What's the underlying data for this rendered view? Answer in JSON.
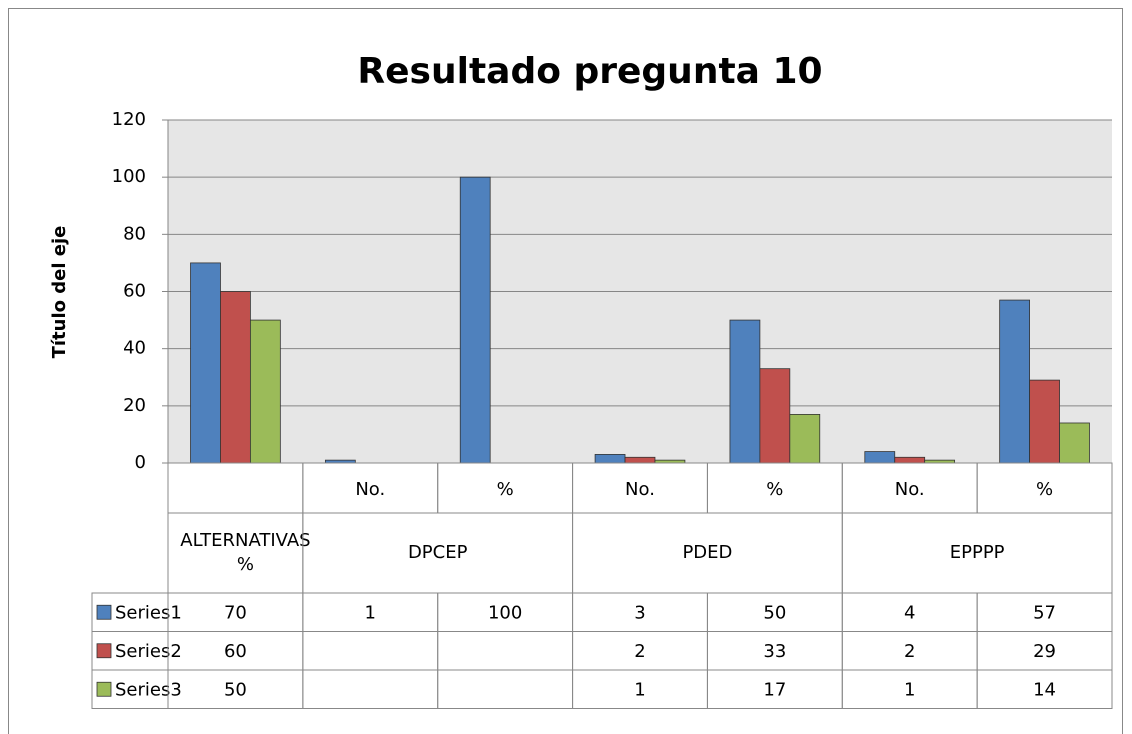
{
  "chart_data": {
    "type": "bar",
    "title": "Resultado pregunta 10",
    "y_label": "Título del eje",
    "categories": [
      null,
      "No.",
      "%",
      "No.",
      "%",
      "No.",
      "%"
    ],
    "groups": [
      {
        "name": "ALTERNATIVAS %",
        "size": 1
      },
      {
        "name": "DPCEP",
        "size": 2
      },
      {
        "name": "PDED",
        "size": 2
      },
      {
        "name": "EPPPP",
        "size": 2
      }
    ],
    "series": [
      {
        "name": "Series1",
        "color": "#4f81bd",
        "values": [
          70,
          1,
          100,
          3,
          50,
          4,
          57
        ]
      },
      {
        "name": "Series2",
        "color": "#c0504d",
        "values": [
          60,
          null,
          null,
          2,
          33,
          2,
          29
        ]
      },
      {
        "name": "Series3",
        "color": "#9bbb59",
        "values": [
          50,
          null,
          null,
          1,
          17,
          1,
          14
        ]
      }
    ],
    "ylim": [
      0,
      120
    ],
    "yticks": [
      0,
      20,
      40,
      60,
      80,
      100,
      120
    ],
    "grid": true,
    "data_table": true
  }
}
